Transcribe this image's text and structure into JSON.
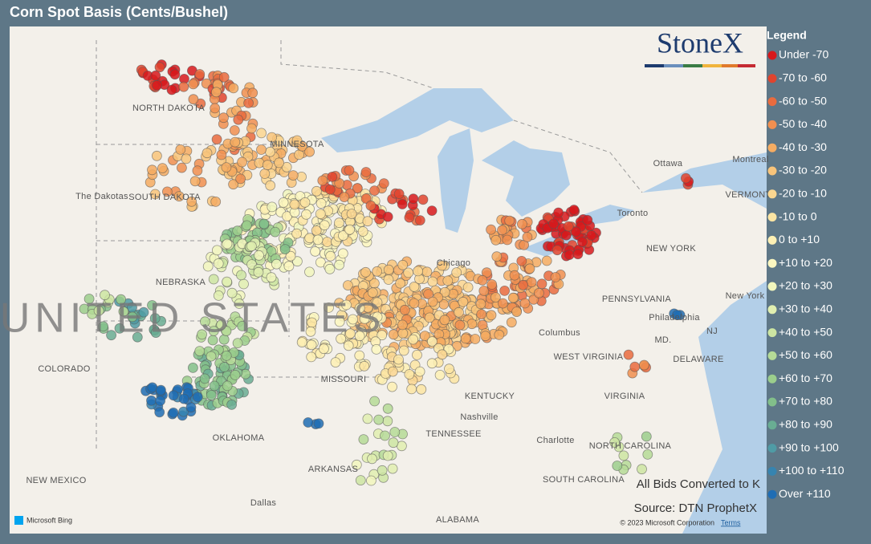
{
  "header": {
    "title": "Corn Spot Basis (Cents/Bushel)"
  },
  "logo": "StoneX",
  "legend": {
    "title": "Legend",
    "items": [
      {
        "label": "Under -70",
        "color": "#d7191c"
      },
      {
        "label": "-70 to -60",
        "color": "#e0442e"
      },
      {
        "label": "-60 to -50",
        "color": "#e96b3e"
      },
      {
        "label": "-50 to -40",
        "color": "#f08f50"
      },
      {
        "label": "-40 to -30",
        "color": "#f5ac62"
      },
      {
        "label": "-30 to -20",
        "color": "#f8c47a"
      },
      {
        "label": "-20 to -10",
        "color": "#fad690"
      },
      {
        "label": "-10 to 0",
        "color": "#fce5a3"
      },
      {
        "label": "0 to +10",
        "color": "#fdf0b4"
      },
      {
        "label": "+10 to +20",
        "color": "#fbf7c0"
      },
      {
        "label": "+20 to +30",
        "color": "#f1f6bd"
      },
      {
        "label": "+30 to +40",
        "color": "#e1efb0"
      },
      {
        "label": "+40 to +50",
        "color": "#cce5a2"
      },
      {
        "label": "+50 to +60",
        "color": "#b5db97"
      },
      {
        "label": "+60 to +70",
        "color": "#9bce8c"
      },
      {
        "label": "+70 to +80",
        "color": "#82bf8a"
      },
      {
        "label": "+80 to +90",
        "color": "#69ad93"
      },
      {
        "label": "+90 to +100",
        "color": "#4f9ba5"
      },
      {
        "label": "+100 to +110",
        "color": "#3684b0"
      },
      {
        "label": "Over +110",
        "color": "#1f6db4"
      }
    ]
  },
  "map": {
    "places": [
      "NORTH DAKOTA",
      "MINNESOTA",
      "The Dakotas",
      "SOUTH DAKOTA",
      "NEBRASKA",
      "UNITED STATES",
      "COLORADO",
      "MISSOURI",
      "KENTUCKY",
      "TENNESSEE",
      "OKLAHOMA",
      "ARKANSAS",
      "NEW MEXICO",
      "Dallas",
      "ALABAMA",
      "Nashville",
      "Chicago",
      "Columbus",
      "WEST VIRGINIA",
      "VIRGINIA",
      "NORTH CAROLINA",
      "SOUTH CAROLINA",
      "Charlotte",
      "PENNSYLVANIA",
      "Philadelphia",
      "NEW YORK",
      "New York",
      "Ottawa",
      "Montreal",
      "Toronto",
      "VERMONT",
      "DELAWARE",
      "MD.",
      "NJ"
    ]
  },
  "notes": [
    "All Bids Converted to K",
    "Source: DTN ProphetX"
  ],
  "footer": {
    "provider": "Microsoft Bing",
    "copyright": "© 2023 Microsoft Corporation",
    "terms": "Terms"
  }
}
